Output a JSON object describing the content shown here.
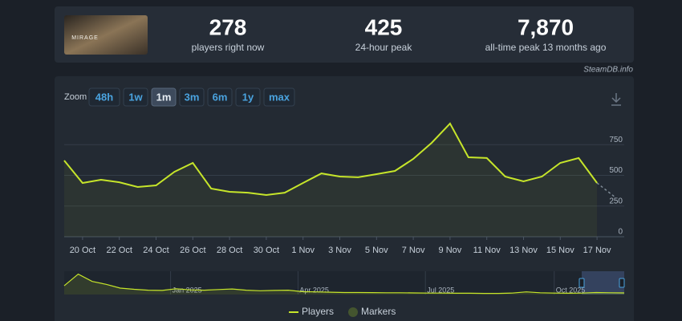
{
  "header": {
    "stats": [
      {
        "value": "278",
        "label": "players right now"
      },
      {
        "value": "425",
        "label": "24-hour peak"
      },
      {
        "value": "7,870",
        "label": "all-time peak 13 months ago"
      }
    ],
    "game_logo_text": "MIRAGE",
    "source": "SteamDB.info"
  },
  "zoom": {
    "label": "Zoom",
    "options": [
      "48h",
      "1w",
      "1m",
      "3m",
      "6m",
      "1y",
      "max"
    ],
    "selected": "1m"
  },
  "chart_data": [
    {
      "type": "line",
      "categories": [
        null,
        "20 Oct",
        null,
        "22 Oct",
        null,
        "24 Oct",
        null,
        "26 Oct",
        null,
        "28 Oct",
        null,
        "30 Oct",
        null,
        "1 Nov",
        null,
        "3 Nov",
        null,
        "5 Nov",
        null,
        "7 Nov",
        null,
        "9 Nov",
        null,
        "11 Nov",
        null,
        "13 Nov",
        null,
        "15 Nov",
        null,
        "17 Nov",
        null
      ],
      "series": [
        {
          "name": "Players",
          "color": "#c6e52a",
          "values": [
            621,
            438,
            464,
            444,
            405,
            418,
            529,
            601,
            392,
            366,
            359,
            340,
            359,
            438,
            516,
            490,
            484,
            510,
            536,
            634,
            765,
            922,
            647,
            641,
            490,
            451,
            490,
            601,
            641,
            438,
            320
          ]
        }
      ],
      "ylim": [
        0,
        1000
      ],
      "yticks": [
        0,
        250,
        500,
        750
      ],
      "grid": true,
      "marker_legend": "Markers",
      "marker_color": "#44552f"
    },
    {
      "type": "line",
      "values": [
        3000,
        7000,
        4500,
        3500,
        2200,
        1800,
        1500,
        1400,
        2000,
        1600,
        1500,
        1700,
        1900,
        1500,
        1300,
        1400,
        1500,
        1000,
        900,
        800,
        700,
        700,
        650,
        600,
        600,
        550,
        500,
        500,
        450,
        450,
        400,
        400,
        500,
        900,
        600,
        500,
        450,
        500,
        700,
        600,
        550
      ],
      "color": "#c6e52a",
      "xlim": [
        0,
        40
      ],
      "ylim": [
        0,
        8000
      ],
      "xticks": [
        {
          "value": 7.6,
          "label": "Jan 2025"
        },
        {
          "value": 16.7,
          "label": "Apr 2025"
        },
        {
          "value": 25.8,
          "label": "Jul 2025"
        },
        {
          "value": 35,
          "label": "Oct 2025"
        }
      ]
    }
  ]
}
